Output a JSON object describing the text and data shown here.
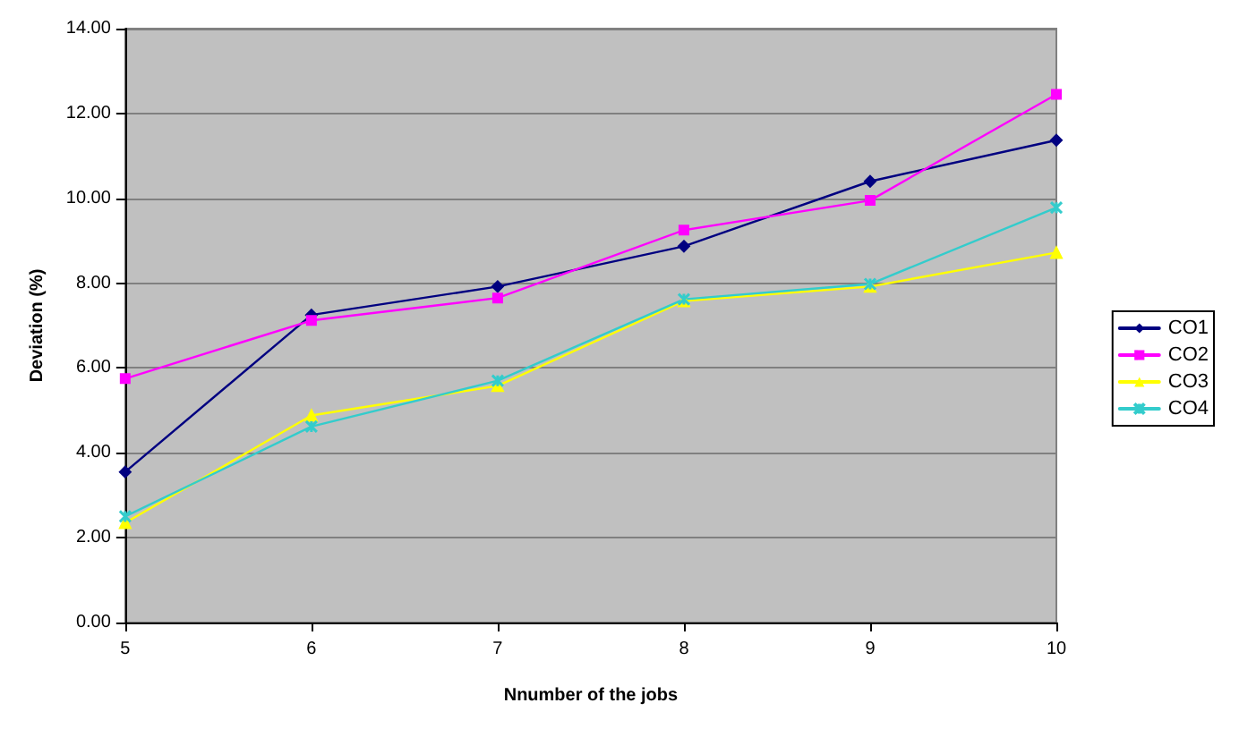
{
  "chart_data": {
    "type": "line",
    "xlabel": "Nnumber of the jobs",
    "ylabel": "Deviation (%)",
    "x": [
      5,
      6,
      7,
      8,
      9,
      10
    ],
    "series": [
      {
        "name": "CO1",
        "color": "#000080",
        "marker": "diamond",
        "values": [
          3.55,
          7.25,
          7.92,
          8.87,
          10.4,
          11.37
        ]
      },
      {
        "name": "CO2",
        "color": "#ff00ff",
        "marker": "square",
        "values": [
          5.75,
          7.12,
          7.65,
          9.25,
          9.95,
          12.45
        ]
      },
      {
        "name": "CO3",
        "color": "#ffff00",
        "marker": "triangle",
        "values": [
          2.35,
          4.88,
          5.58,
          7.58,
          7.92,
          8.72
        ]
      },
      {
        "name": "CO4",
        "color": "#33cccc",
        "marker": "cross",
        "values": [
          2.5,
          4.62,
          5.7,
          7.62,
          7.98,
          9.78
        ]
      }
    ],
    "xlim": [
      5,
      10
    ],
    "xticks": [
      5,
      6,
      7,
      8,
      9,
      10
    ],
    "ylim": [
      0,
      14
    ],
    "yticks": [
      {
        "value": 0,
        "label": "0.00"
      },
      {
        "value": 2,
        "label": "2.00"
      },
      {
        "value": 4,
        "label": "4.00"
      },
      {
        "value": 6,
        "label": "6.00"
      },
      {
        "value": 8,
        "label": "8.00"
      },
      {
        "value": 10,
        "label": "10.00"
      },
      {
        "value": 12,
        "label": "12.00"
      },
      {
        "value": 14,
        "label": "14.00"
      }
    ],
    "grid": "y",
    "legend": "right"
  }
}
